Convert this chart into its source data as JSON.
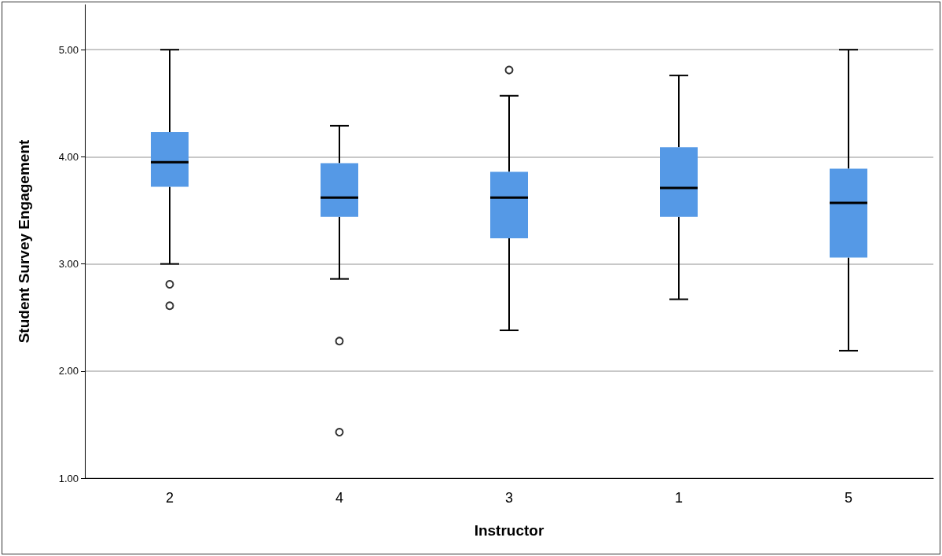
{
  "chart_data": {
    "type": "box",
    "xlabel": "Instructor",
    "ylabel": "Student Survey Engagement",
    "categories": [
      "2",
      "4",
      "3",
      "1",
      "5"
    ],
    "color": "#5599e6",
    "boxes": [
      {
        "low": 3.0,
        "q1": 3.72,
        "median": 3.95,
        "q3": 4.23,
        "high": 5.0,
        "outliers": [
          2.81,
          2.61
        ]
      },
      {
        "low": 2.86,
        "q1": 3.44,
        "median": 3.62,
        "q3": 3.94,
        "high": 4.29,
        "outliers": [
          2.28,
          1.43
        ]
      },
      {
        "low": 2.38,
        "q1": 3.24,
        "median": 3.62,
        "q3": 3.86,
        "high": 4.57,
        "outliers": [
          4.81
        ]
      },
      {
        "low": 2.67,
        "q1": 3.44,
        "median": 3.71,
        "q3": 4.09,
        "high": 4.76
      },
      {
        "low": 2.19,
        "q1": 3.06,
        "median": 3.57,
        "q3": 3.89,
        "high": 5.0
      }
    ],
    "ylim": [
      1,
      5.42
    ],
    "yticks": [
      {
        "value": 1,
        "label": "1.00"
      },
      {
        "value": 2,
        "label": "2.00"
      },
      {
        "value": 3,
        "label": "3.00"
      },
      {
        "value": 4,
        "label": "4.00"
      },
      {
        "value": 5,
        "label": "5.00"
      }
    ],
    "grid": "y",
    "legend": false
  }
}
